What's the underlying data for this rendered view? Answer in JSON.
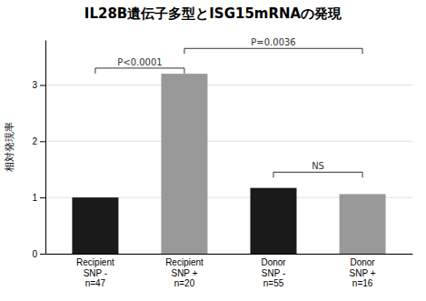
{
  "chart_data": {
    "type": "bar",
    "title": "IL28B遺伝子多型とISG15mRNAの発現",
    "ylabel": "相対発現率",
    "categories": [
      "Recipient\nSNP -\nn=47",
      "Recipient\nSNP +\nn=20",
      "Donor\nSNP -\nn=55",
      "Donor\nSNP +\nn=16"
    ],
    "values": [
      1.0,
      3.2,
      1.17,
      1.06
    ],
    "colors": [
      "#1a1a1a",
      "#999999",
      "#1a1a1a",
      "#999999"
    ],
    "ylim": [
      0,
      3.8
    ],
    "yticks": [
      0,
      1,
      2,
      3
    ],
    "grid": true,
    "annotations": [
      {
        "text": "P<0.0001",
        "x": [
          0,
          1
        ],
        "y": 3.3
      },
      {
        "text": "P=0.0036",
        "x": [
          1,
          3
        ],
        "y": 3.65
      },
      {
        "text": "NS",
        "x": [
          2,
          3
        ],
        "y": 1.45
      }
    ]
  }
}
